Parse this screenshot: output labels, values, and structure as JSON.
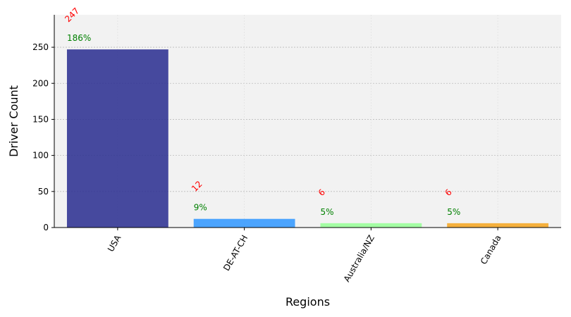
{
  "chart_data": {
    "type": "bar",
    "title": "",
    "xlabel": "Regions",
    "ylabel": "Driver Count",
    "categories": [
      "USA",
      "DE-AT-CH",
      "Australia/NZ",
      "Canada"
    ],
    "values": [
      247,
      12,
      6,
      6
    ],
    "percent_labels": [
      "186%",
      "9%",
      "5%",
      "5%"
    ],
    "value_labels": [
      "247",
      "12",
      "6",
      "6"
    ],
    "ylim": [
      0,
      295
    ],
    "yticks": [
      0,
      50,
      100,
      150,
      200,
      250
    ],
    "grid": true,
    "legend": "none",
    "colors": {
      "bars": [
        "#2e3192",
        "#3399ff",
        "#99ff99",
        "#f5a623"
      ],
      "value_label": "#ff0000",
      "percent_label": "#008000",
      "plot_background": "#f2f2f2",
      "grid": "#bbbbbb"
    }
  }
}
